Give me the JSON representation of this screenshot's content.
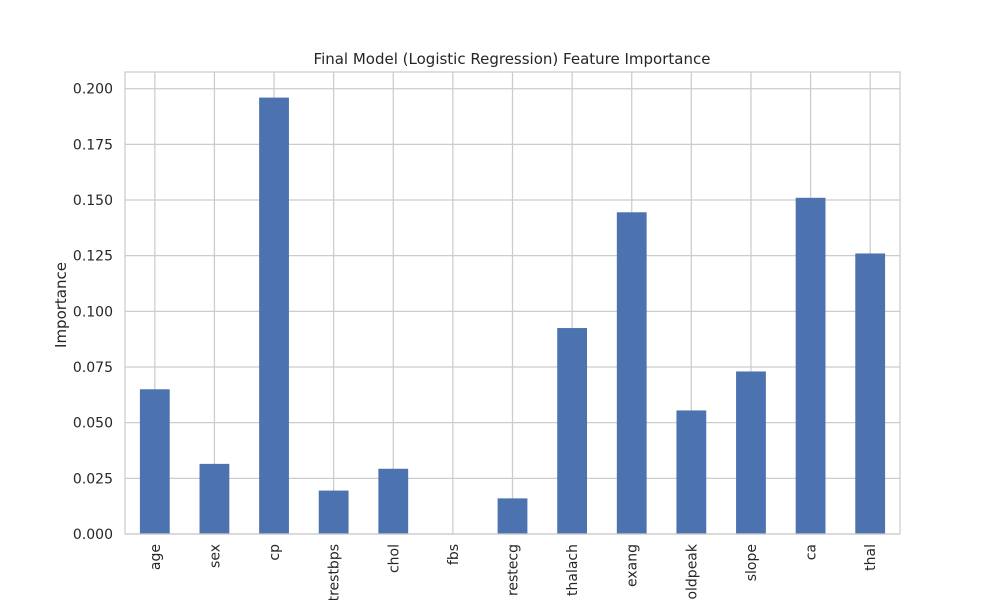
{
  "chart_data": {
    "type": "bar",
    "title": "Final Model (Logistic Regression) Feature Importance",
    "xlabel": "",
    "ylabel": "Importance",
    "categories": [
      "age",
      "sex",
      "cp",
      "trestbps",
      "chol",
      "fbs",
      "restecg",
      "thalach",
      "exang",
      "oldpeak",
      "slope",
      "ca",
      "thal"
    ],
    "values": [
      0.065,
      0.0315,
      0.196,
      0.0195,
      0.0293,
      0.0,
      0.016,
      0.0925,
      0.1445,
      0.0555,
      0.073,
      0.151,
      0.126
    ],
    "ylim": [
      0,
      0.2075
    ],
    "yticks": [
      "0.000",
      "0.025",
      "0.050",
      "0.075",
      "0.100",
      "0.125",
      "0.150",
      "0.175",
      "0.200"
    ],
    "grid": true,
    "bar_color": "#4c72b0",
    "grid_color": "#cccccc"
  }
}
